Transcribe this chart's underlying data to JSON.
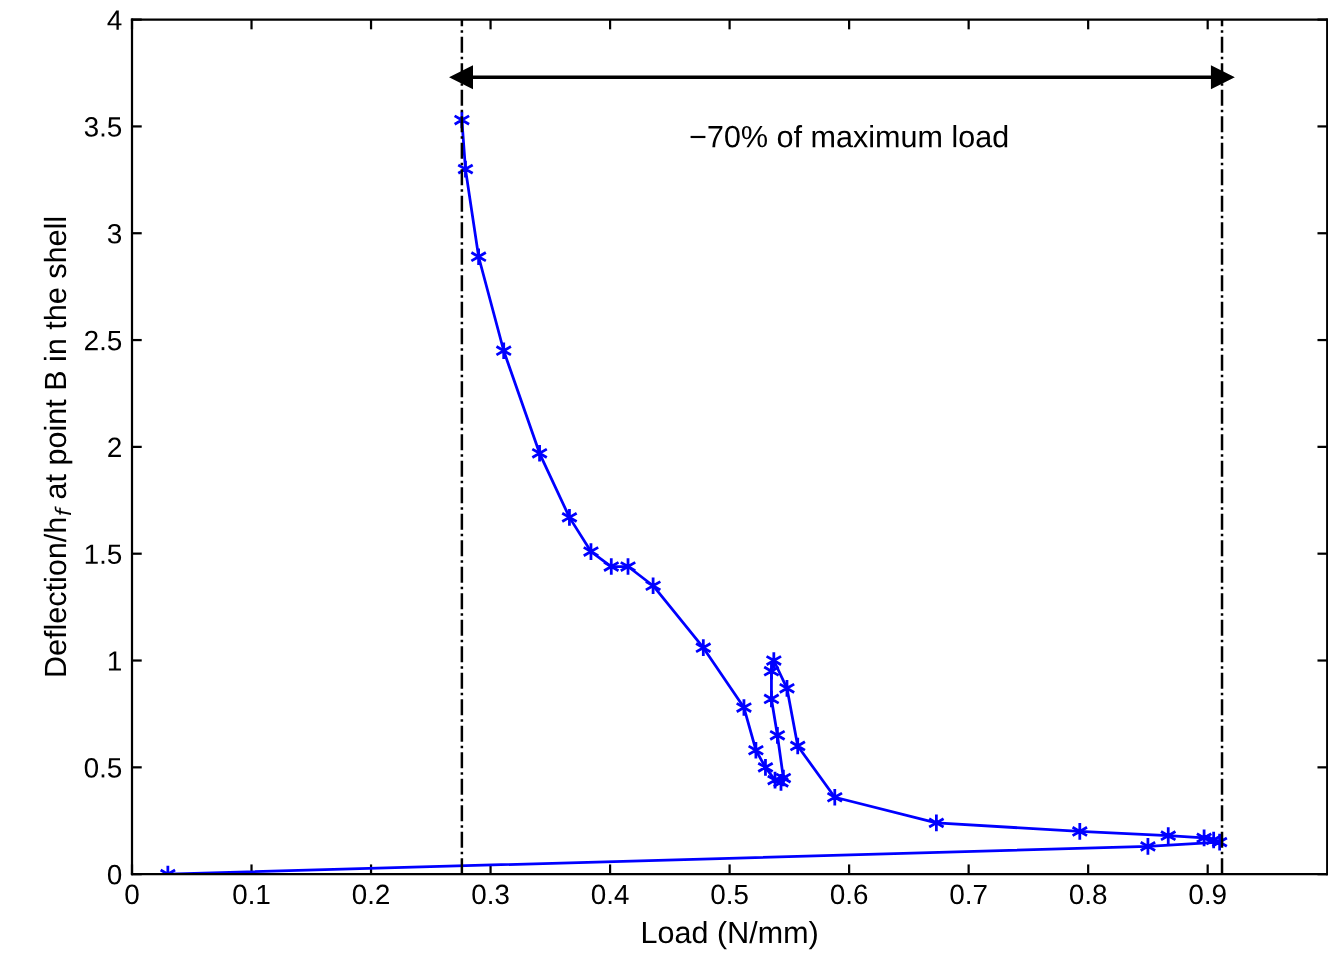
{
  "chart_data": {
    "type": "line",
    "xlabel": "Load (N/mm)",
    "ylabel": "Deflection/h$_{f}$ at point B in the shell",
    "xlim": [
      0,
      1
    ],
    "xticks": [
      0,
      0.1,
      0.2,
      0.3,
      0.4,
      0.5,
      0.6,
      0.7,
      0.8,
      0.9
    ],
    "ylim": [
      0,
      4
    ],
    "yticks": [
      0,
      0.5,
      1,
      1.5,
      2,
      2.5,
      3,
      3.5,
      4
    ],
    "grid": false,
    "marker": "cross",
    "line_style": "solid",
    "series": [
      {
        "color": "#0000ff",
        "x": [
          0.03,
          0.85,
          0.91,
          0.905,
          0.897,
          0.867,
          0.793,
          0.673,
          0.588,
          0.557,
          0.548,
          0.537,
          0.535,
          0.535,
          0.54,
          0.545,
          0.543,
          0.538,
          0.53,
          0.522,
          0.512,
          0.478,
          0.436,
          0.415,
          0.401,
          0.384,
          0.366,
          0.341,
          0.311,
          0.29,
          0.279,
          0.276
        ],
        "values": [
          0,
          0.13,
          0.15,
          0.16,
          0.17,
          0.18,
          0.2,
          0.24,
          0.36,
          0.6,
          0.87,
          1.0,
          0.95,
          0.82,
          0.65,
          0.45,
          0.43,
          0.44,
          0.5,
          0.58,
          0.78,
          1.06,
          1.35,
          1.44,
          1.44,
          1.51,
          1.67,
          1.97,
          2.45,
          2.89,
          3.3,
          3.53
        ]
      },
      {
        "type": "line",
        "marker": "triangle",
        "color": "#000000",
        "x": [
          0.276,
          0.912
        ],
        "values": [
          3.73,
          3.73
        ]
      }
    ],
    "ref_lines": [
      {
        "axis": "x",
        "value": 0.276,
        "color": "#000000",
        "line_style": "dashed"
      },
      {
        "axis": "x",
        "value": 0.912,
        "color": "#000000",
        "line_style": "dashed"
      }
    ],
    "annotations": [
      "−70% of maximum load"
    ]
  }
}
